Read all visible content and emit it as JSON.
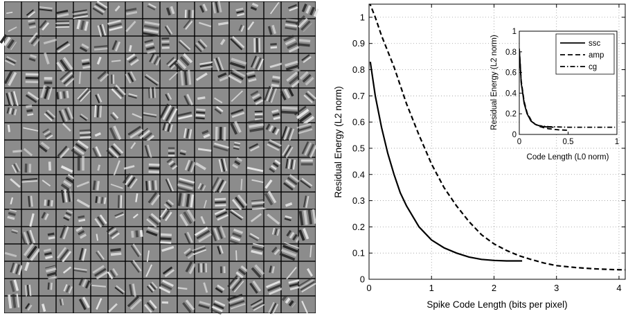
{
  "chart_data": [
    {
      "type": "heatmap",
      "rows": 18,
      "cols": 18,
      "title": ""
    },
    {
      "type": "line",
      "title": "",
      "xlabel": "Spike Code Length (bits per pixel)",
      "ylabel": "Residual Energy (L2 norm)",
      "xlim": [
        0,
        4.1
      ],
      "ylim": [
        0,
        1.05
      ],
      "xticks": [
        "0",
        "1",
        "2",
        "3",
        "4"
      ],
      "yticks": [
        "0",
        "0.1",
        "0.2",
        "0.3",
        "0.4",
        "0.5",
        "0.6",
        "0.7",
        "0.8",
        "0.9",
        "1"
      ],
      "grid": true,
      "series": [
        {
          "style": "solid",
          "x": [
            0.02,
            0.1,
            0.2,
            0.3,
            0.4,
            0.5,
            0.6,
            0.8,
            1.0,
            1.2,
            1.4,
            1.6,
            1.8,
            2.0,
            2.2,
            2.45
          ],
          "y": [
            0.83,
            0.7,
            0.58,
            0.48,
            0.4,
            0.33,
            0.28,
            0.2,
            0.15,
            0.12,
            0.1,
            0.085,
            0.076,
            0.072,
            0.07,
            0.07
          ]
        },
        {
          "style": "dashed",
          "x": [
            0.0,
            0.1,
            0.2,
            0.4,
            0.6,
            0.8,
            1.0,
            1.2,
            1.4,
            1.6,
            1.8,
            2.0,
            2.2,
            2.4,
            2.6,
            2.8,
            3.0,
            3.3,
            3.6,
            3.9,
            4.1
          ],
          "y": [
            1.06,
            1.0,
            0.93,
            0.81,
            0.67,
            0.55,
            0.44,
            0.35,
            0.28,
            0.22,
            0.17,
            0.135,
            0.11,
            0.09,
            0.075,
            0.062,
            0.052,
            0.045,
            0.04,
            0.037,
            0.036
          ]
        }
      ]
    },
    {
      "type": "line",
      "title": "",
      "xlabel": "Code Length (L0 norm)",
      "ylabel": "Residual Energy (L2 norm)",
      "xlim": [
        0,
        1
      ],
      "ylim": [
        0,
        1
      ],
      "xticks": [
        "0",
        "0.5",
        "1"
      ],
      "yticks": [
        "0",
        "0.2",
        "0.4",
        "0.6",
        "0.8",
        "1"
      ],
      "legend": "top-right",
      "series": [
        {
          "name": "ssc",
          "style": "solid",
          "x": [
            0.0,
            0.02,
            0.05,
            0.08,
            0.12,
            0.16,
            0.2,
            0.25,
            0.3,
            0.35
          ],
          "y": [
            0.83,
            0.5,
            0.3,
            0.2,
            0.13,
            0.1,
            0.085,
            0.075,
            0.072,
            0.07
          ]
        },
        {
          "name": "amp",
          "style": "dashed",
          "x": [
            0.0,
            0.02,
            0.05,
            0.08,
            0.12,
            0.16,
            0.2,
            0.25,
            0.3,
            0.4,
            0.5
          ],
          "y": [
            0.83,
            0.52,
            0.32,
            0.21,
            0.14,
            0.1,
            0.08,
            0.065,
            0.055,
            0.045,
            0.04
          ]
        },
        {
          "name": "cg",
          "style": "dashdot",
          "x": [
            0.0,
            0.02,
            0.05,
            0.08,
            0.12,
            0.16,
            0.2,
            0.3,
            0.5,
            0.7,
            0.98
          ],
          "y": [
            0.82,
            0.5,
            0.31,
            0.2,
            0.13,
            0.1,
            0.085,
            0.075,
            0.07,
            0.07,
            0.07
          ]
        }
      ]
    }
  ]
}
